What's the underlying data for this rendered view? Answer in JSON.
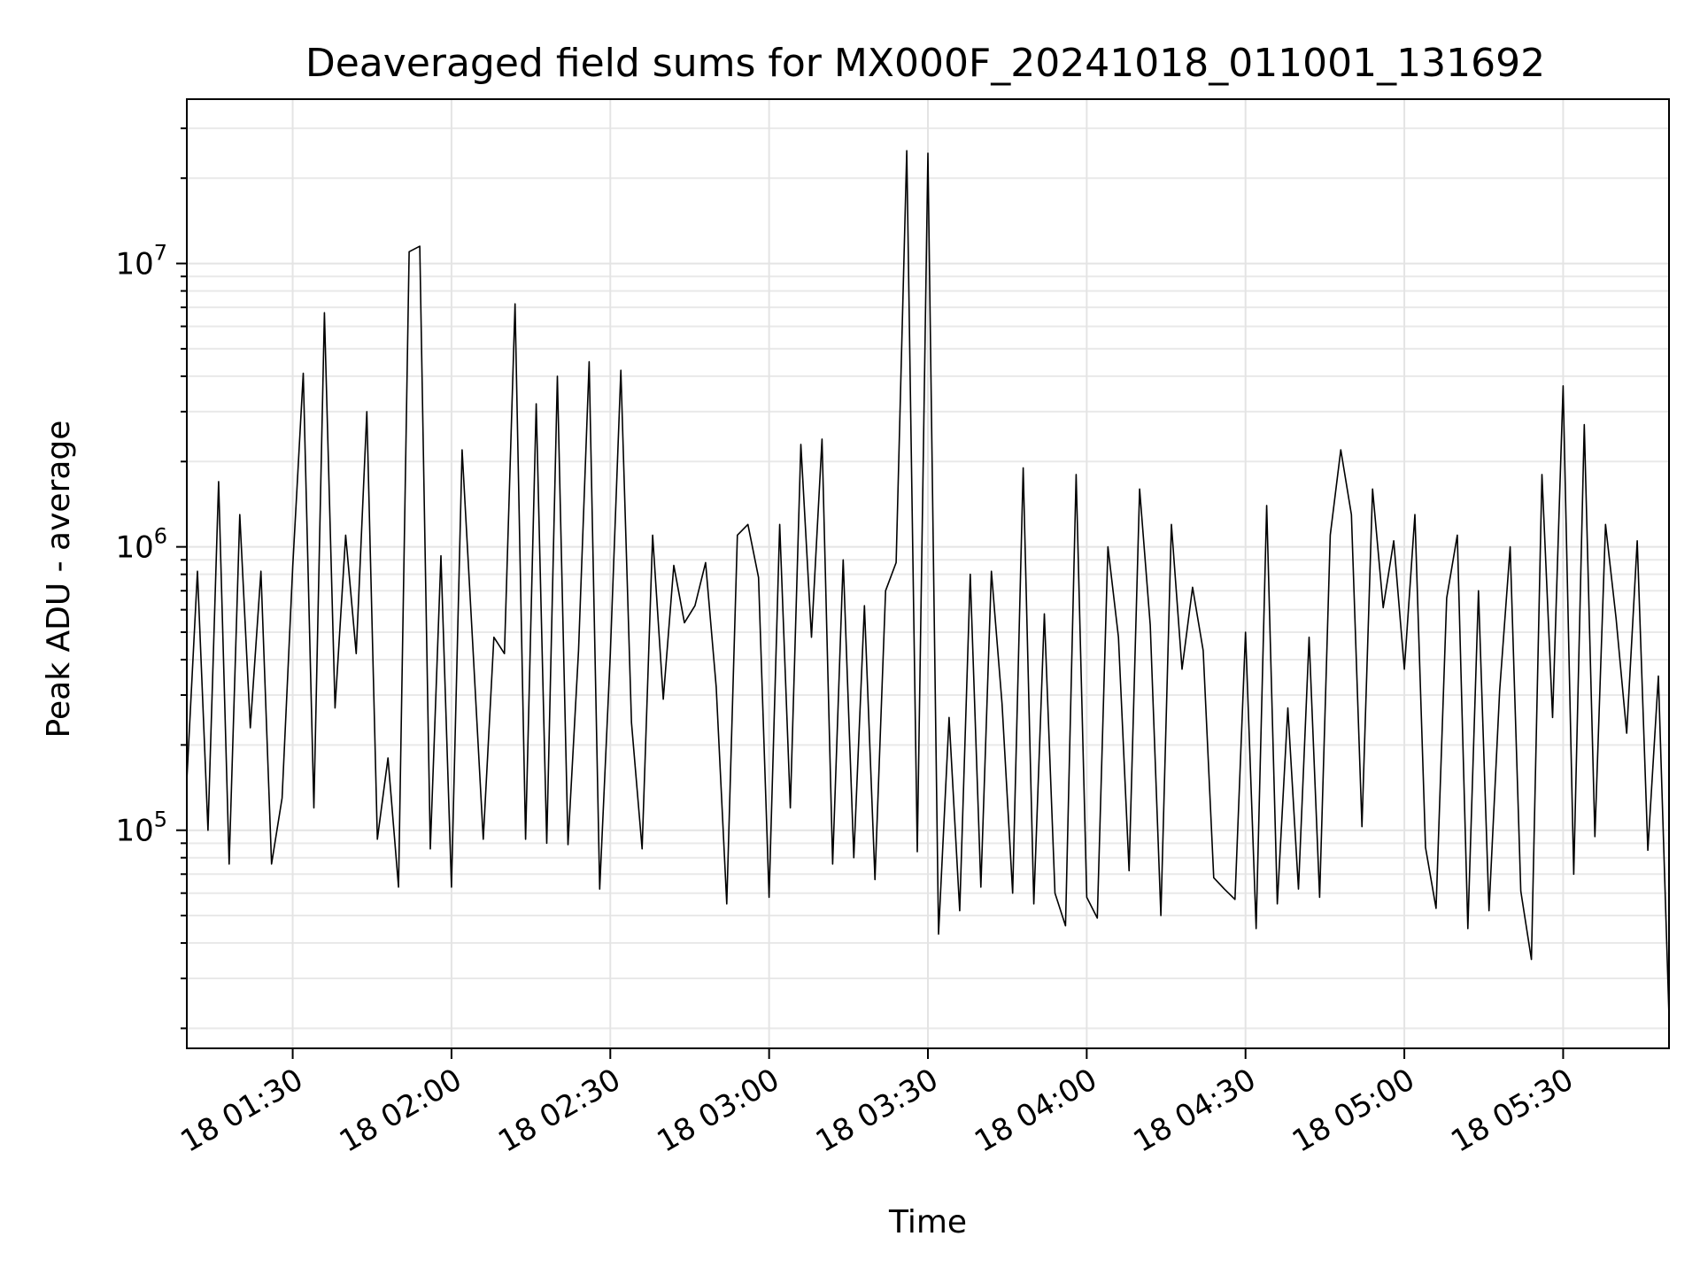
{
  "chart_data": {
    "type": "line",
    "title": "Deaveraged field sums for MX000F_20241018_011001_131692",
    "xlabel": "Time",
    "ylabel": "Peak ADU - average",
    "yscale": "log",
    "ylim": [
      17000,
      38000000
    ],
    "xlim": [
      "18 01:10",
      "18 05:50"
    ],
    "grid": true,
    "line_color": "#000000",
    "x_ticks": [
      "18 01:30",
      "18 02:00",
      "18 02:30",
      "18 03:00",
      "18 03:30",
      "18 04:00",
      "18 04:30",
      "18 05:00",
      "18 05:30"
    ],
    "y_ticks": [
      {
        "value": 100000,
        "base": "10",
        "exp": "5"
      },
      {
        "value": 1000000,
        "base": "10",
        "exp": "6"
      },
      {
        "value": 10000000,
        "base": "10",
        "exp": "7"
      }
    ],
    "series": [
      {
        "x": [
          "18 01:10",
          "18 01:12",
          "18 01:14",
          "18 01:16",
          "18 01:18",
          "18 01:20",
          "18 01:22",
          "18 01:24",
          "18 01:26",
          "18 01:28",
          "18 01:30",
          "18 01:32",
          "18 01:34",
          "18 01:36",
          "18 01:38",
          "18 01:40",
          "18 01:42",
          "18 01:44",
          "18 01:46",
          "18 01:48",
          "18 01:50",
          "18 01:52",
          "18 01:54",
          "18 01:56",
          "18 01:58",
          "18 02:00",
          "18 02:02",
          "18 02:04",
          "18 02:06",
          "18 02:08",
          "18 02:10",
          "18 02:12",
          "18 02:14",
          "18 02:16",
          "18 02:18",
          "18 02:20",
          "18 02:22",
          "18 02:24",
          "18 02:26",
          "18 02:28",
          "18 02:30",
          "18 02:32",
          "18 02:34",
          "18 02:36",
          "18 02:38",
          "18 02:40",
          "18 02:42",
          "18 02:44",
          "18 02:46",
          "18 02:48",
          "18 02:50",
          "18 02:52",
          "18 02:54",
          "18 02:56",
          "18 02:58",
          "18 03:00",
          "18 03:02",
          "18 03:04",
          "18 03:06",
          "18 03:08",
          "18 03:10",
          "18 03:12",
          "18 03:14",
          "18 03:16",
          "18 03:18",
          "18 03:20",
          "18 03:22",
          "18 03:24",
          "18 03:26",
          "18 03:28",
          "18 03:30",
          "18 03:32",
          "18 03:34",
          "18 03:36",
          "18 03:38",
          "18 03:40",
          "18 03:42",
          "18 03:44",
          "18 03:46",
          "18 03:48",
          "18 03:50",
          "18 03:52",
          "18 03:54",
          "18 03:56",
          "18 03:58",
          "18 04:00",
          "18 04:02",
          "18 04:04",
          "18 04:06",
          "18 04:08",
          "18 04:10",
          "18 04:12",
          "18 04:14",
          "18 04:16",
          "18 04:18",
          "18 04:20",
          "18 04:22",
          "18 04:24",
          "18 04:26",
          "18 04:28",
          "18 04:30",
          "18 04:32",
          "18 04:34",
          "18 04:36",
          "18 04:38",
          "18 04:40",
          "18 04:42",
          "18 04:44",
          "18 04:46",
          "18 04:48",
          "18 04:50",
          "18 04:52",
          "18 04:54",
          "18 04:56",
          "18 04:58",
          "18 05:00",
          "18 05:02",
          "18 05:04",
          "18 05:06",
          "18 05:08",
          "18 05:10",
          "18 05:12",
          "18 05:14",
          "18 05:16",
          "18 05:18",
          "18 05:20",
          "18 05:22",
          "18 05:24",
          "18 05:26",
          "18 05:28",
          "18 05:30",
          "18 05:32",
          "18 05:34",
          "18 05:36",
          "18 05:38",
          "18 05:40",
          "18 05:42",
          "18 05:44",
          "18 05:46",
          "18 05:48",
          "18 05:50"
        ],
        "values": [
          150000,
          820000,
          100000,
          1700000,
          76000,
          1300000,
          230000,
          820000,
          76000,
          130000,
          850000,
          4100000,
          120000,
          6700000,
          270000,
          1100000,
          420000,
          3000000,
          93000,
          180000,
          63000,
          11000000,
          11500000,
          86000,
          930000,
          63000,
          2200000,
          460000,
          93000,
          480000,
          420000,
          7200000,
          93000,
          3200000,
          90000,
          4000000,
          89000,
          430000,
          4500000,
          62000,
          420000,
          4200000,
          240000,
          86000,
          1100000,
          290000,
          860000,
          540000,
          620000,
          880000,
          320000,
          55000,
          1100000,
          1200000,
          780000,
          58000,
          1200000,
          120000,
          2300000,
          480000,
          2400000,
          76000,
          900000,
          80000,
          620000,
          67000,
          700000,
          880000,
          25000000,
          84000,
          24500000,
          43000,
          250000,
          52000,
          800000,
          63000,
          820000,
          280000,
          60000,
          1900000,
          55000,
          580000,
          60000,
          46000,
          1800000,
          58000,
          49000,
          1000000,
          480000,
          72000,
          1600000,
          530000,
          50000,
          1200000,
          370000,
          720000,
          430000,
          68000,
          62000,
          57000,
          500000,
          45000,
          1400000,
          55000,
          270000,
          62000,
          480000,
          58000,
          1100000,
          2200000,
          1300000,
          103000,
          1600000,
          610000,
          1050000,
          370000,
          1300000,
          87000,
          53000,
          660000,
          1100000,
          45000,
          700000,
          52000,
          310000,
          1000000,
          61000,
          35000,
          1800000,
          250000,
          3700000,
          70000,
          2700000,
          95000,
          1200000,
          560000,
          220000,
          1050000,
          85000,
          350000,
          22000
        ]
      }
    ]
  }
}
